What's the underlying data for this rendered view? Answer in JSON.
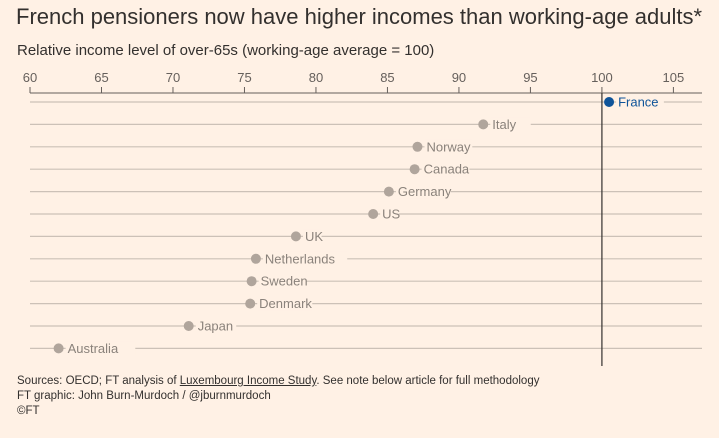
{
  "title": "French pensioners now have higher incomes than working-age adults*",
  "subtitle": "Relative income level of over-65s (working-age average = 100)",
  "footer": {
    "sources_prefix": "Sources: OECD; FT analysis of ",
    "sources_link": "Luxembourg Income Study",
    "sources_suffix": ". See note below article for full methodology",
    "graphic_credit": "FT graphic: John Burn-Murdoch / @jburnmurdoch",
    "copyright": "©FT"
  },
  "colors": {
    "background": "#fff1e5",
    "dot": "#b0a59c",
    "highlight": "#0f5499",
    "gridline": "#ccc1b7",
    "reference_line": "#33302e"
  },
  "chart_data": {
    "type": "scatter",
    "title": "French pensioners now have higher incomes than working-age adults*",
    "subtitle": "Relative income level of over-65s (working-age average = 100)",
    "xlabel": "Relative income level of over-65s (working-age average = 100)",
    "ylabel": "",
    "xlim": [
      60,
      107
    ],
    "xticks": [
      60,
      65,
      70,
      75,
      80,
      85,
      90,
      95,
      100,
      105
    ],
    "reference_value": 100,
    "highlight": "France",
    "categories": [
      "France",
      "Italy",
      "Norway",
      "Canada",
      "Germany",
      "US",
      "UK",
      "Netherlands",
      "Sweden",
      "Denmark",
      "Japan",
      "Australia"
    ],
    "values": [
      100.5,
      91.7,
      87.1,
      86.9,
      85.1,
      84.0,
      78.6,
      75.8,
      75.5,
      75.4,
      71.1,
      62.0
    ],
    "legend": "none"
  }
}
